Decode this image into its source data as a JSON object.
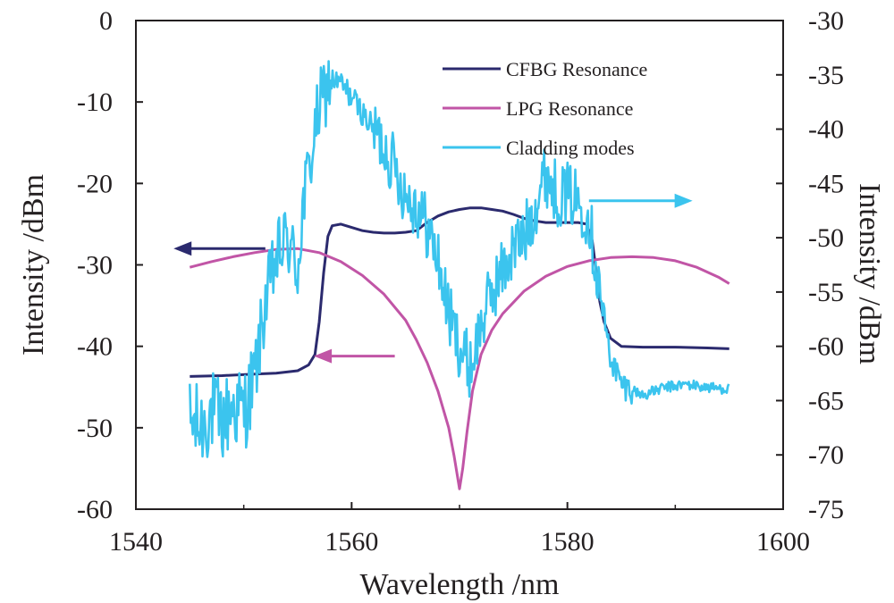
{
  "chart_data": {
    "type": "line",
    "title": "",
    "xlabel": "Wavelength /nm",
    "ylabel_left": "Intensity /dBm",
    "ylabel_right": "Intensity /dBm",
    "xlim": [
      1540,
      1600
    ],
    "ylim_left": [
      -60,
      0
    ],
    "ylim_right": [
      -75,
      -30
    ],
    "x_ticks": [
      "1540",
      "1560",
      "1580",
      "1600"
    ],
    "x_tick_values": [
      1540,
      1560,
      1580,
      1600
    ],
    "y_left_ticks": [
      "0",
      "-10",
      "-20",
      "-30",
      "-40",
      "-50",
      "-60"
    ],
    "y_left_tick_values": [
      0,
      -10,
      -20,
      -30,
      -40,
      -50,
      -60
    ],
    "y_right_ticks": [
      "-30",
      "-35",
      "-40",
      "-45",
      "-50",
      "-55",
      "-60",
      "-65",
      "-70",
      "-75"
    ],
    "y_right_tick_values": [
      -30,
      -35,
      -40,
      -45,
      -50,
      -55,
      -60,
      -65,
      -70,
      -75
    ],
    "grid": false,
    "legend_position": "top-right",
    "series": [
      {
        "name": "CFBG Resonance",
        "axis": "left",
        "color": "#2b2a6e",
        "points": [
          [
            1545,
            -43.7
          ],
          [
            1548,
            -43.6
          ],
          [
            1551,
            -43.4
          ],
          [
            1553,
            -43.3
          ],
          [
            1555,
            -43.0
          ],
          [
            1556,
            -42.3
          ],
          [
            1556.6,
            -41.0
          ],
          [
            1557,
            -37.0
          ],
          [
            1557.4,
            -31.0
          ],
          [
            1557.8,
            -26.5
          ],
          [
            1558.2,
            -25.2
          ],
          [
            1559,
            -25.0
          ],
          [
            1560,
            -25.4
          ],
          [
            1561,
            -25.8
          ],
          [
            1562,
            -26.0
          ],
          [
            1563,
            -26.1
          ],
          [
            1564,
            -26.1
          ],
          [
            1565,
            -26.0
          ],
          [
            1566,
            -25.8
          ],
          [
            1567,
            -24.8
          ],
          [
            1568,
            -24.0
          ],
          [
            1569,
            -23.5
          ],
          [
            1570,
            -23.2
          ],
          [
            1571,
            -23.0
          ],
          [
            1572,
            -23.0
          ],
          [
            1573,
            -23.2
          ],
          [
            1574,
            -23.4
          ],
          [
            1575,
            -23.8
          ],
          [
            1576,
            -24.3
          ],
          [
            1577,
            -24.6
          ],
          [
            1578,
            -24.8
          ],
          [
            1579,
            -24.8
          ],
          [
            1580,
            -24.8
          ],
          [
            1581,
            -24.8
          ],
          [
            1581.8,
            -25.0
          ],
          [
            1582.3,
            -27.0
          ],
          [
            1582.7,
            -31.0
          ],
          [
            1583,
            -34.5
          ],
          [
            1583.4,
            -37.0
          ],
          [
            1584,
            -39.0
          ],
          [
            1585,
            -40.0
          ],
          [
            1587,
            -40.1
          ],
          [
            1590,
            -40.1
          ],
          [
            1593,
            -40.2
          ],
          [
            1595,
            -40.3
          ]
        ]
      },
      {
        "name": "LPG Resonance",
        "axis": "left",
        "color": "#c155a6",
        "points": [
          [
            1545,
            -30.3
          ],
          [
            1547,
            -29.6
          ],
          [
            1549,
            -29.0
          ],
          [
            1551,
            -28.5
          ],
          [
            1553,
            -28.1
          ],
          [
            1555,
            -28.0
          ],
          [
            1557,
            -28.5
          ],
          [
            1559,
            -29.6
          ],
          [
            1561,
            -31.3
          ],
          [
            1563,
            -33.6
          ],
          [
            1565,
            -36.8
          ],
          [
            1566,
            -39.2
          ],
          [
            1567,
            -42.0
          ],
          [
            1568,
            -45.5
          ],
          [
            1569,
            -50.0
          ],
          [
            1569.5,
            -53.5
          ],
          [
            1570,
            -57.5
          ],
          [
            1570.3,
            -55.0
          ],
          [
            1570.7,
            -50.5
          ],
          [
            1571.2,
            -45.5
          ],
          [
            1572,
            -41.0
          ],
          [
            1573,
            -38.0
          ],
          [
            1574,
            -36.0
          ],
          [
            1576,
            -33.2
          ],
          [
            1578,
            -31.4
          ],
          [
            1580,
            -30.2
          ],
          [
            1582,
            -29.5
          ],
          [
            1584,
            -29.1
          ],
          [
            1586,
            -29.0
          ],
          [
            1588,
            -29.1
          ],
          [
            1590,
            -29.5
          ],
          [
            1592,
            -30.3
          ],
          [
            1594,
            -31.5
          ],
          [
            1595,
            -32.3
          ]
        ]
      },
      {
        "name": "Cladding modes",
        "axis": "right",
        "color": "#3bc4ee",
        "points": [
          [
            1545,
            -67.0
          ],
          [
            1546,
            -67.5
          ],
          [
            1547,
            -66.0
          ],
          [
            1548,
            -67.0
          ],
          [
            1549,
            -65.5
          ],
          [
            1550,
            -66.0
          ],
          [
            1551,
            -63.0
          ],
          [
            1552,
            -56.0
          ],
          [
            1553,
            -52.0
          ],
          [
            1554,
            -50.0
          ],
          [
            1555,
            -53.0
          ],
          [
            1555.5,
            -47.0
          ],
          [
            1556,
            -44.0
          ],
          [
            1556.5,
            -41.0
          ],
          [
            1557,
            -38.0
          ],
          [
            1558,
            -35.5
          ],
          [
            1559,
            -35.8
          ],
          [
            1560,
            -37.0
          ],
          [
            1561,
            -38.5
          ],
          [
            1562,
            -40.0
          ],
          [
            1563,
            -41.5
          ],
          [
            1564,
            -43.5
          ],
          [
            1565,
            -46.0
          ],
          [
            1566,
            -47.0
          ],
          [
            1567,
            -49.0
          ],
          [
            1568,
            -52.0
          ],
          [
            1569,
            -57.0
          ],
          [
            1570,
            -60.0
          ],
          [
            1571,
            -62.0
          ],
          [
            1572,
            -58.0
          ],
          [
            1573,
            -55.0
          ],
          [
            1574,
            -53.0
          ],
          [
            1575,
            -51.0
          ],
          [
            1576,
            -50.0
          ],
          [
            1577,
            -47.0
          ],
          [
            1578,
            -44.0
          ],
          [
            1579,
            -46.0
          ],
          [
            1580,
            -46.0
          ],
          [
            1581,
            -46.5
          ],
          [
            1582,
            -48.0
          ],
          [
            1583,
            -55.0
          ],
          [
            1584,
            -61.0
          ],
          [
            1585,
            -63.5
          ],
          [
            1587,
            -64.5
          ],
          [
            1589,
            -63.8
          ],
          [
            1591,
            -63.5
          ],
          [
            1593,
            -63.8
          ],
          [
            1595,
            -63.9
          ]
        ]
      }
    ],
    "annotations": [
      {
        "type": "arrow",
        "direction": "left",
        "target_series": "CFBG Resonance",
        "meaning": "left axis"
      },
      {
        "type": "arrow",
        "direction": "left",
        "target_series": "LPG Resonance",
        "meaning": "left axis"
      },
      {
        "type": "arrow",
        "direction": "right",
        "target_series": "Cladding modes",
        "meaning": "right axis"
      }
    ]
  }
}
